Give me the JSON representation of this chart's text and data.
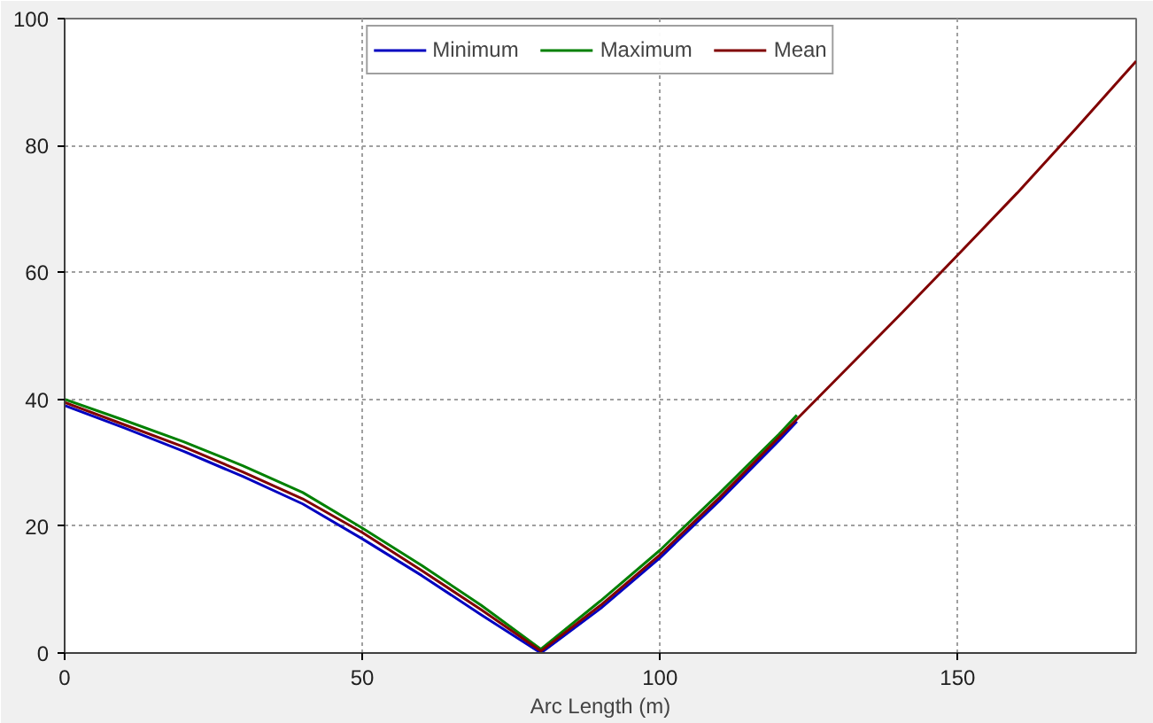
{
  "chart_data": {
    "type": "line",
    "xlabel": "Arc Length (m)",
    "xlim": [
      0,
      180
    ],
    "xticks": [
      0,
      50,
      100,
      150
    ],
    "ylim": [
      0,
      100
    ],
    "yticks": [
      0,
      20,
      40,
      60,
      80,
      100
    ],
    "grid": true,
    "legend": "top",
    "marker": "none",
    "line_style": "solid",
    "series": [
      {
        "name": "Minimum",
        "color": "#0000c0",
        "x": [
          0,
          10,
          20,
          30,
          40,
          50,
          60,
          70,
          80,
          90,
          100,
          110,
          120,
          123
        ],
        "values": [
          39,
          35.5,
          31.8,
          27.8,
          23.5,
          18,
          12.2,
          6,
          0,
          7,
          15,
          24,
          33.5,
          36.5
        ]
      },
      {
        "name": "Maximum",
        "color": "#008000",
        "x": [
          0,
          10,
          20,
          30,
          40,
          50,
          60,
          70,
          80,
          90,
          100,
          110,
          120,
          123
        ],
        "values": [
          40,
          36.7,
          33.3,
          29.5,
          25.3,
          19.7,
          13.8,
          7.5,
          0.6,
          8.2,
          16.2,
          25.2,
          34.5,
          37.5
        ]
      },
      {
        "name": "Mean",
        "color": "#800000",
        "x": [
          0,
          10,
          20,
          30,
          40,
          50,
          60,
          70,
          80,
          90,
          100,
          110,
          120,
          130,
          140,
          150,
          160,
          170,
          180
        ],
        "values": [
          39.5,
          36,
          32.5,
          28.5,
          24.3,
          19,
          13,
          6.8,
          0.3,
          7.5,
          15.5,
          24.5,
          34,
          43.5,
          53,
          62.7,
          72.5,
          82.8,
          93.3
        ]
      }
    ]
  }
}
